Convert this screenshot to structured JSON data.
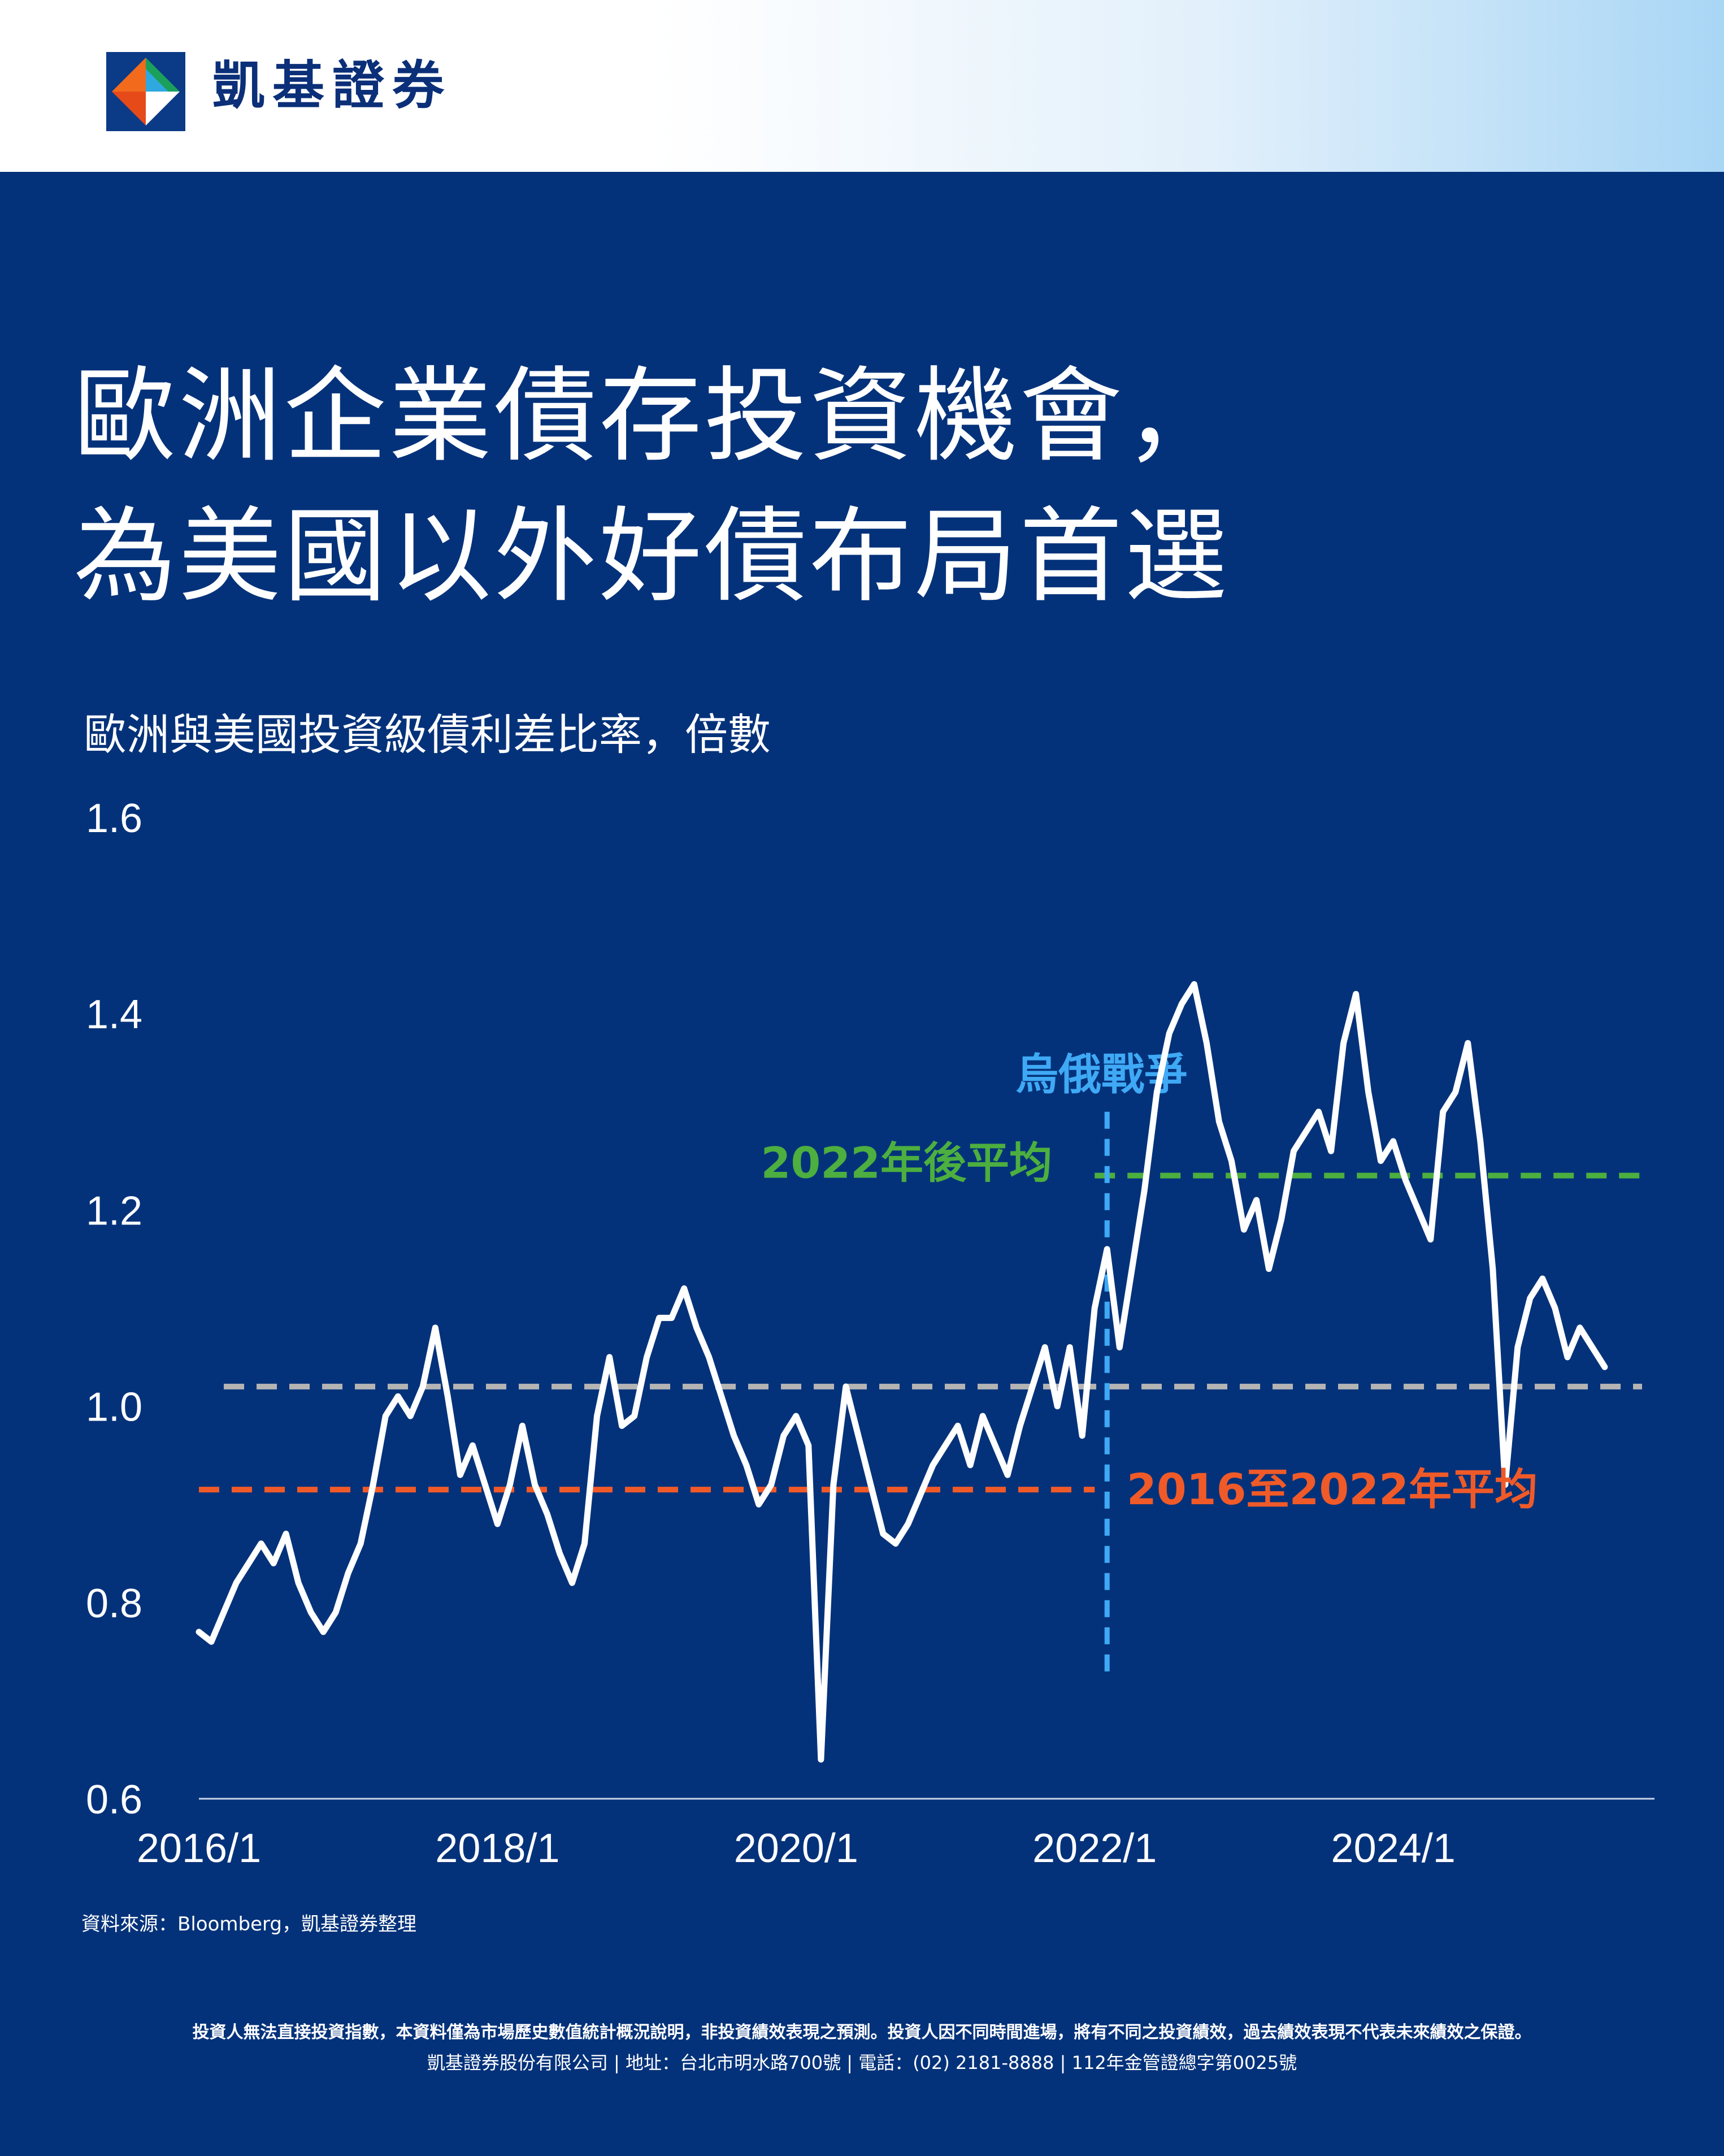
{
  "brand": {
    "name": "凱基證券"
  },
  "title": {
    "line1": "歐洲企業債存投資機會，",
    "line2": "為美國以外好債布局首選"
  },
  "colors": {
    "background": "#04327a",
    "line": "#ffffff",
    "avg_2016_2022": "#f05a28",
    "avg_post_2022": "#4caf3f",
    "overall_avg": "#b4b4b4",
    "event_line": "#3fa9f5"
  },
  "chart_data": {
    "type": "line",
    "title": "歐洲與美國投資級債利差比率，倍數",
    "xlabel": "",
    "ylabel": "",
    "ylim": [
      0.6,
      1.6
    ],
    "yticks": [
      "1.6",
      "1.4",
      "1.2",
      "1.0",
      "0.8",
      "0.6"
    ],
    "xticks": [
      "2016/1",
      "2018/1",
      "2020/1",
      "2022/1",
      "2024/1"
    ],
    "xlim": [
      "2016/1",
      "2025/10"
    ],
    "grid": false,
    "series": [
      {
        "values_by_date": [
          [
            "2016/1",
            0.77
          ],
          [
            "2016/2",
            0.76
          ],
          [
            "2016/3",
            0.79
          ],
          [
            "2016/4",
            0.82
          ],
          [
            "2016/5",
            0.84
          ],
          [
            "2016/6",
            0.86
          ],
          [
            "2016/7",
            0.84
          ],
          [
            "2016/8",
            0.87
          ],
          [
            "2016/9",
            0.82
          ],
          [
            "2016/10",
            0.79
          ],
          [
            "2016/11",
            0.77
          ],
          [
            "2016/12",
            0.79
          ],
          [
            "2017/1",
            0.83
          ],
          [
            "2017/2",
            0.86
          ],
          [
            "2017/3",
            0.92
          ],
          [
            "2017/4",
            0.99
          ],
          [
            "2017/5",
            1.01
          ],
          [
            "2017/6",
            0.99
          ],
          [
            "2017/7",
            1.02
          ],
          [
            "2017/8",
            1.08
          ],
          [
            "2017/9",
            1.01
          ],
          [
            "2017/10",
            0.93
          ],
          [
            "2017/11",
            0.96
          ],
          [
            "2017/12",
            0.92
          ],
          [
            "2018/1",
            0.88
          ],
          [
            "2018/2",
            0.92
          ],
          [
            "2018/3",
            0.98
          ],
          [
            "2018/4",
            0.92
          ],
          [
            "2018/5",
            0.89
          ],
          [
            "2018/6",
            0.85
          ],
          [
            "2018/7",
            0.82
          ],
          [
            "2018/8",
            0.86
          ],
          [
            "2018/9",
            0.99
          ],
          [
            "2018/10",
            1.05
          ],
          [
            "2018/11",
            0.98
          ],
          [
            "2018/12",
            0.99
          ],
          [
            "2019/1",
            1.05
          ],
          [
            "2019/2",
            1.09
          ],
          [
            "2019/3",
            1.09
          ],
          [
            "2019/4",
            1.12
          ],
          [
            "2019/5",
            1.08
          ],
          [
            "2019/6",
            1.05
          ],
          [
            "2019/7",
            1.01
          ],
          [
            "2019/8",
            0.97
          ],
          [
            "2019/9",
            0.94
          ],
          [
            "2019/10",
            0.9
          ],
          [
            "2019/11",
            0.92
          ],
          [
            "2019/12",
            0.97
          ],
          [
            "2020/1",
            0.99
          ],
          [
            "2020/2",
            0.96
          ],
          [
            "2020/3",
            0.64
          ],
          [
            "2020/4",
            0.92
          ],
          [
            "2020/5",
            1.02
          ],
          [
            "2020/6",
            0.97
          ],
          [
            "2020/7",
            0.92
          ],
          [
            "2020/8",
            0.87
          ],
          [
            "2020/9",
            0.86
          ],
          [
            "2020/10",
            0.88
          ],
          [
            "2020/11",
            0.91
          ],
          [
            "2020/12",
            0.94
          ],
          [
            "2021/1",
            0.96
          ],
          [
            "2021/2",
            0.98
          ],
          [
            "2021/3",
            0.94
          ],
          [
            "2021/4",
            0.99
          ],
          [
            "2021/5",
            0.96
          ],
          [
            "2021/6",
            0.93
          ],
          [
            "2021/7",
            0.98
          ],
          [
            "2021/8",
            1.02
          ],
          [
            "2021/9",
            1.06
          ],
          [
            "2021/10",
            1.0
          ],
          [
            "2021/11",
            1.06
          ],
          [
            "2021/12",
            0.97
          ],
          [
            "2022/1",
            1.1
          ],
          [
            "2022/2",
            1.16
          ],
          [
            "2022/3",
            1.06
          ],
          [
            "2022/4",
            1.14
          ],
          [
            "2022/5",
            1.22
          ],
          [
            "2022/6",
            1.32
          ],
          [
            "2022/7",
            1.38
          ],
          [
            "2022/8",
            1.41
          ],
          [
            "2022/9",
            1.43
          ],
          [
            "2022/10",
            1.37
          ],
          [
            "2022/11",
            1.29
          ],
          [
            "2022/12",
            1.25
          ],
          [
            "2023/1",
            1.18
          ],
          [
            "2023/2",
            1.21
          ],
          [
            "2023/3",
            1.14
          ],
          [
            "2023/4",
            1.19
          ],
          [
            "2023/5",
            1.26
          ],
          [
            "2023/6",
            1.28
          ],
          [
            "2023/7",
            1.3
          ],
          [
            "2023/8",
            1.26
          ],
          [
            "2023/9",
            1.37
          ],
          [
            "2023/10",
            1.42
          ],
          [
            "2023/11",
            1.32
          ],
          [
            "2023/12",
            1.25
          ],
          [
            "2024/1",
            1.27
          ],
          [
            "2024/2",
            1.23
          ],
          [
            "2024/3",
            1.2
          ],
          [
            "2024/4",
            1.17
          ],
          [
            "2024/5",
            1.3
          ],
          [
            "2024/6",
            1.32
          ],
          [
            "2024/7",
            1.37
          ],
          [
            "2024/8",
            1.27
          ],
          [
            "2024/9",
            1.14
          ],
          [
            "2024/10",
            0.92
          ],
          [
            "2024/11",
            1.06
          ],
          [
            "2024/12",
            1.11
          ],
          [
            "2025/1",
            1.13
          ],
          [
            "2025/2",
            1.1
          ],
          [
            "2025/3",
            1.05
          ],
          [
            "2025/4",
            1.08
          ],
          [
            "2025/5",
            1.06
          ],
          [
            "2025/6",
            1.04
          ]
        ]
      }
    ],
    "reference_lines": [
      {
        "label": "2016至2022年平均",
        "value": 0.915,
        "from": "2016/1",
        "to": "2022/1",
        "color": "#f05a28"
      },
      {
        "label": "",
        "value": 1.02,
        "from": "2016/3",
        "to": "2025/9",
        "color": "#b4b4b4"
      },
      {
        "label": "2022年後平均",
        "value": 1.235,
        "from": "2022/1",
        "to": "2025/9",
        "color": "#4caf3f"
      }
    ],
    "events": [
      {
        "label": "烏俄戰爭",
        "date": "2022/2",
        "color": "#3fa9f5"
      }
    ]
  },
  "source": "資料來源：Bloomberg，凱基證券整理",
  "disclaimer": "投資人無法直接投資指數，本資料僅為市場歷史數值統計概況說明，非投資績效表現之預測。投資人因不同時間進場，將有不同之投資績效，過去績效表現不代表未來績效之保證。",
  "company_info": "凱基證券股份有限公司 | 地址：台北市明水路700號 | 電話：(02) 2181-8888 | 112年金管證總字第0025號"
}
